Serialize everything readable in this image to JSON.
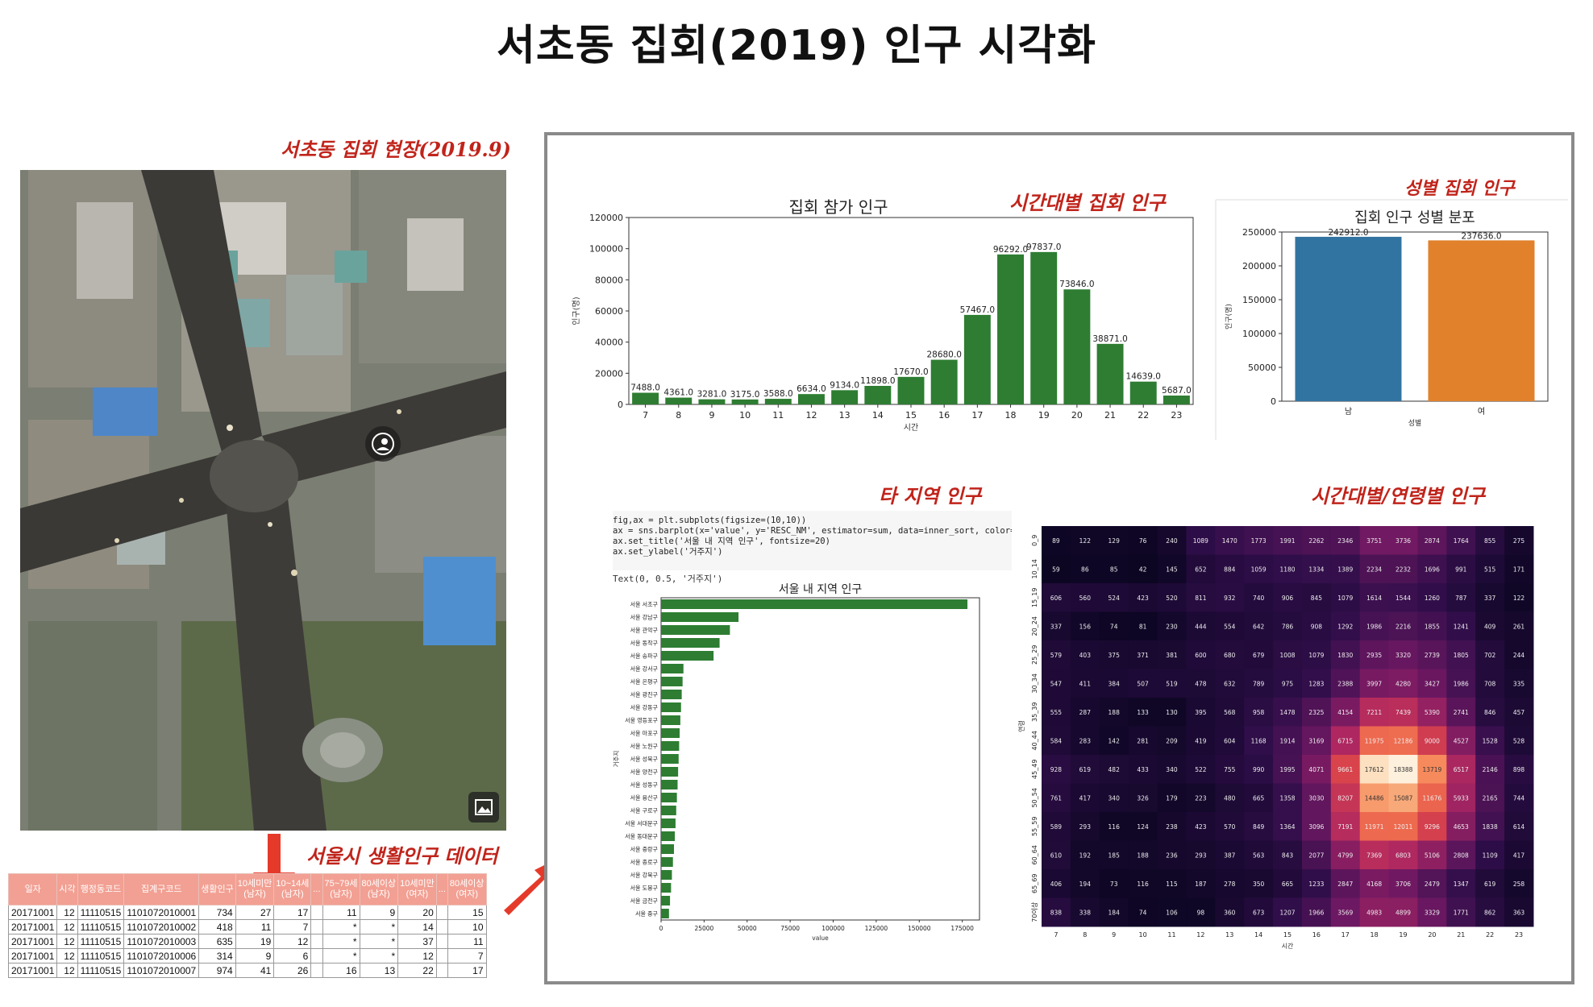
{
  "page_title": "서초동 집회(2019) 인구 시각화",
  "annotations": {
    "photo_caption": "서초동 집회 현장(2019.9)",
    "hourly": "시간대별 집회 인구",
    "gender": "성별 집회 인구",
    "region": "타 지역 인구",
    "age_heat": "시간대별/연령별 인구",
    "data_caption": "서울시 생활인구 데이터"
  },
  "colors": {
    "bar_green": "#2e7d32",
    "male_blue": "#3274a1",
    "female_orange": "#e1812c",
    "annotation_red": "#c0241b",
    "frame_gray": "#8a8a8a",
    "table_header": "#f2a093"
  },
  "icons": {
    "photo_badge": "person-circle-icon",
    "gallery": "image-icon"
  },
  "life_pop_table": {
    "headers": [
      "일자",
      "시각",
      "행정동코드",
      "집계구코드",
      "생활인구",
      "10세미만\n(남자)",
      "10~14세\n(남자)",
      "...",
      "75~79세\n(남자)",
      "80세이상\n(남자)",
      "10세미만\n(여자)",
      "...",
      "80세이상\n(여자)"
    ],
    "rows": [
      [
        "20171001",
        "12",
        "11110515",
        "1101072010001",
        "734",
        "27",
        "17",
        "",
        "11",
        "9",
        "20",
        "",
        "15"
      ],
      [
        "20171001",
        "12",
        "11110515",
        "1101072010002",
        "418",
        "11",
        "7",
        "",
        "*",
        "*",
        "14",
        "",
        "10"
      ],
      [
        "20171001",
        "12",
        "11110515",
        "1101072010003",
        "635",
        "19",
        "12",
        "",
        "*",
        "*",
        "37",
        "",
        "11"
      ],
      [
        "20171001",
        "12",
        "11110515",
        "1101072010006",
        "314",
        "9",
        "6",
        "",
        "*",
        "*",
        "12",
        "",
        "7"
      ],
      [
        "20171001",
        "12",
        "11110515",
        "1101072010007",
        "974",
        "41",
        "26",
        "",
        "16",
        "13",
        "22",
        "",
        "17"
      ]
    ]
  },
  "code_cell": {
    "lines": [
      "fig,ax = plt.subplots(figsize=(10,10))",
      "ax = sns.barplot(x='value', y='RESC_NM', estimator=sum, data=inner_sort, color='fores",
      "ax.set_title('서울 내 지역 인구', fontsize=20)",
      "ax.set_ylabel('거주지')"
    ],
    "output": "Text(0, 0.5, '거주지')"
  },
  "chart_data": [
    {
      "type": "bar",
      "title": "집회 참가 인구",
      "xlabel": "시간",
      "ylabel": "인구(명)",
      "categories": [
        "7",
        "8",
        "9",
        "10",
        "11",
        "12",
        "13",
        "14",
        "15",
        "16",
        "17",
        "18",
        "19",
        "20",
        "21",
        "22",
        "23"
      ],
      "values": [
        7488.0,
        4361.0,
        3281.0,
        3175.0,
        3588.0,
        6634.0,
        9134.0,
        11898.0,
        17670.0,
        28680.0,
        57467.0,
        96292.0,
        97837.0,
        73846.0,
        38871.0,
        14639.0,
        5687.0
      ],
      "value_labels": [
        "7488.0",
        "4361.0",
        "3281.0",
        "3175.0",
        "3588.0",
        "6634.0",
        "9134.0",
        "11898.0",
        "17670.0",
        "28680.0",
        "57467.0",
        "96292.0",
        "97837.0",
        "73846.0",
        "38871.0",
        "14639.0",
        "5687.0"
      ],
      "yticks": [
        "0",
        "20000",
        "40000",
        "60000",
        "80000",
        "100000",
        "120000"
      ],
      "ylim": [
        0,
        120000
      ],
      "color": "#2e7d32"
    },
    {
      "type": "bar",
      "title": "집회 인구 성별 분포",
      "xlabel": "성별",
      "ylabel": "인구(명)",
      "categories": [
        "남",
        "여"
      ],
      "values": [
        242912.0,
        237636.0
      ],
      "value_labels": [
        "242912.0",
        "237636.0"
      ],
      "yticks": [
        "0",
        "50000",
        "100000",
        "150000",
        "200000",
        "250000"
      ],
      "ylim": [
        0,
        250000
      ],
      "colors": [
        "#3274a1",
        "#e1812c"
      ]
    },
    {
      "type": "bar",
      "orientation": "horizontal",
      "title": "서울 내 지역 인구",
      "xlabel": "value",
      "ylabel": "거주지",
      "categories": [
        "서울 서초구",
        "서울 강남구",
        "서울 관악구",
        "서울 동작구",
        "서울 송파구",
        "서울 강서구",
        "서울 은평구",
        "서울 광진구",
        "서울 강동구",
        "서울 영등포구",
        "서울 마포구",
        "서울 노원구",
        "서울 성북구",
        "서울 양천구",
        "서울 성동구",
        "서울 용산구",
        "서울 구로구",
        "서울 서대문구",
        "서울 동대문구",
        "서울 중랑구",
        "서울 종로구",
        "서울 강북구",
        "서울 도봉구",
        "서울 금천구",
        "서울 중구"
      ],
      "values": [
        178000,
        45000,
        40000,
        34000,
        30500,
        13000,
        12500,
        12000,
        11600,
        11200,
        10800,
        10500,
        10200,
        9900,
        9600,
        9200,
        8800,
        8400,
        8000,
        7500,
        6900,
        6300,
        5800,
        5200,
        4600
      ],
      "xticks": [
        "0",
        "25000",
        "50000",
        "75000",
        "100000",
        "125000",
        "150000",
        "175000"
      ],
      "xlim": [
        0,
        185000
      ],
      "color": "#2e7d32"
    },
    {
      "type": "heatmap",
      "xlabel": "시간",
      "ylabel": "연령",
      "x": [
        "7",
        "8",
        "9",
        "10",
        "11",
        "12",
        "13",
        "14",
        "15",
        "16",
        "17",
        "18",
        "19",
        "20",
        "21",
        "22",
        "23"
      ],
      "y": [
        "0_9",
        "10_14",
        "15_19",
        "20_24",
        "25_29",
        "30_34",
        "35_39",
        "40_44",
        "45_49",
        "50_54",
        "55_59",
        "60_64",
        "65_69",
        "70이상"
      ],
      "values": [
        [
          89,
          122,
          129,
          76,
          240,
          1089,
          1470,
          1773,
          1991,
          2262,
          2346,
          3751,
          3736,
          2874,
          1764,
          855,
          275
        ],
        [
          59,
          86,
          85,
          42,
          145,
          652,
          884,
          1059,
          1180,
          1334,
          1389,
          2234,
          2232,
          1696,
          991,
          515,
          171
        ],
        [
          606,
          560,
          524,
          423,
          520,
          811,
          932,
          740,
          906,
          845,
          1079,
          1614,
          1544,
          1260,
          787,
          337,
          122
        ],
        [
          337,
          156,
          74,
          81,
          230,
          444,
          554,
          642,
          786,
          908,
          1292,
          1986,
          2216,
          1855,
          1241,
          409,
          261
        ],
        [
          579,
          403,
          375,
          371,
          381,
          600,
          680,
          679,
          1008,
          1079,
          1830,
          2935,
          3320,
          2739,
          1805,
          702,
          244
        ],
        [
          547,
          411,
          384,
          507,
          519,
          478,
          632,
          789,
          975,
          1283,
          2388,
          3997,
          4280,
          3427,
          1986,
          708,
          335
        ],
        [
          555,
          287,
          188,
          133,
          130,
          395,
          568,
          958,
          1478,
          2325,
          4154,
          7211,
          7439,
          5390,
          2741,
          846,
          457
        ],
        [
          584,
          283,
          142,
          281,
          209,
          419,
          604,
          1168,
          1914,
          3169,
          6715,
          11975,
          12186,
          9000,
          4527,
          1528,
          528
        ],
        [
          928,
          619,
          482,
          433,
          340,
          522,
          755,
          990,
          1995,
          4071,
          9661,
          17612,
          18388,
          13719,
          6517,
          2146,
          898
        ],
        [
          761,
          417,
          340,
          326,
          179,
          223,
          480,
          665,
          1358,
          3030,
          8207,
          14486,
          15087,
          11676,
          5933,
          2165,
          744
        ],
        [
          589,
          293,
          116,
          124,
          238,
          423,
          570,
          849,
          1364,
          3096,
          7191,
          11971,
          12011,
          9296,
          4653,
          1838,
          614
        ],
        [
          610,
          192,
          185,
          188,
          236,
          293,
          387,
          563,
          843,
          2077,
          4799,
          7369,
          6803,
          5106,
          2808,
          1109,
          417
        ],
        [
          406,
          194,
          73,
          116,
          115,
          187,
          278,
          350,
          665,
          1233,
          2847,
          4168,
          3706,
          2479,
          1347,
          619,
          258
        ],
        [
          838,
          338,
          184,
          74,
          106,
          98,
          360,
          673,
          1207,
          1966,
          3569,
          4983,
          4899,
          3329,
          1771,
          862,
          363
        ]
      ],
      "vmax": 18388
    }
  ]
}
